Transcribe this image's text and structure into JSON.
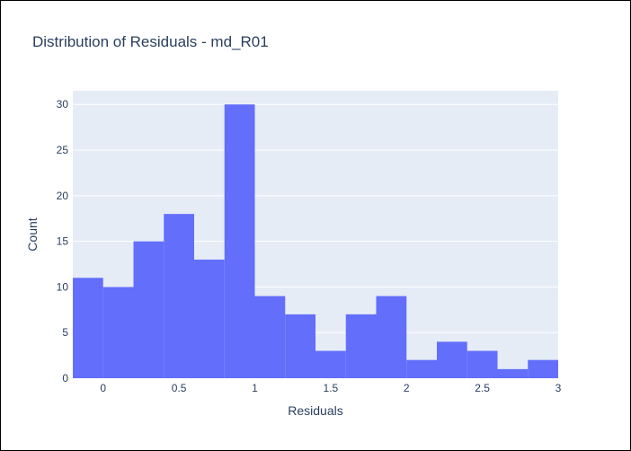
{
  "chart_data": {
    "type": "bar",
    "title": "Distribution of Residuals - md_R01",
    "xlabel": "Residuals",
    "ylabel": "Count",
    "bin_width": 0.2,
    "bins": [
      {
        "start": -0.2,
        "end": 0.0,
        "count": 11
      },
      {
        "start": 0.0,
        "end": 0.2,
        "count": 10
      },
      {
        "start": 0.2,
        "end": 0.4,
        "count": 15
      },
      {
        "start": 0.4,
        "end": 0.6,
        "count": 18
      },
      {
        "start": 0.6,
        "end": 0.8,
        "count": 13
      },
      {
        "start": 0.8,
        "end": 1.0,
        "count": 30
      },
      {
        "start": 1.0,
        "end": 1.2,
        "count": 9
      },
      {
        "start": 1.2,
        "end": 1.4,
        "count": 7
      },
      {
        "start": 1.4,
        "end": 1.6,
        "count": 3
      },
      {
        "start": 1.6,
        "end": 1.8,
        "count": 7
      },
      {
        "start": 1.8,
        "end": 2.0,
        "count": 9
      },
      {
        "start": 2.0,
        "end": 2.2,
        "count": 2
      },
      {
        "start": 2.2,
        "end": 2.4,
        "count": 4
      },
      {
        "start": 2.4,
        "end": 2.6,
        "count": 3
      },
      {
        "start": 2.6,
        "end": 2.8,
        "count": 1
      },
      {
        "start": 2.8,
        "end": 3.0,
        "count": 2
      }
    ],
    "xlim": [
      -0.2,
      3.0
    ],
    "ylim": [
      0,
      31.5
    ],
    "x_ticks": [
      0,
      0.5,
      1,
      1.5,
      2,
      2.5,
      3
    ],
    "x_tick_labels": [
      "0",
      "0.5",
      "1",
      "1.5",
      "2",
      "2.5",
      "3"
    ],
    "y_ticks": [
      0,
      5,
      10,
      15,
      20,
      25,
      30
    ],
    "y_tick_labels": [
      "0",
      "5",
      "10",
      "15",
      "20",
      "25",
      "30"
    ],
    "grid": true,
    "colors": {
      "bar": "#636efa",
      "plot_background": "#e5ecf6",
      "grid": "#ffffff",
      "text": "#2a3f5f"
    }
  }
}
